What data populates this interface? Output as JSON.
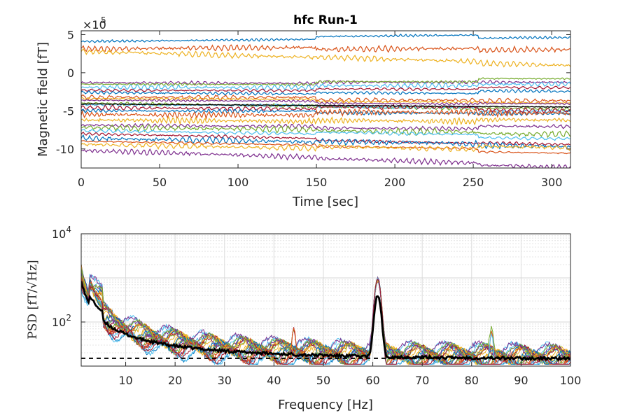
{
  "chart_data": [
    {
      "type": "line",
      "title": "hfc Run-1",
      "xlabel": "Time [sec]",
      "ylabel": "Magnetic field [fT]",
      "y_exponent_label": "×10",
      "y_exponent_power": "5",
      "xlim": [
        0,
        312
      ],
      "ylim": [
        -12.5,
        5.5
      ],
      "xticks": [
        0,
        50,
        100,
        150,
        200,
        250,
        300
      ],
      "yticks": [
        5,
        0,
        -5,
        -10
      ],
      "grid": false,
      "colors": [
        "#0072BD",
        "#D95319",
        "#EDB120",
        "#7E2F8E",
        "#77AC30",
        "#4DBEEE",
        "#A2142F"
      ],
      "series_baselines_start": [
        4.1,
        3.1,
        2.8,
        -1.3,
        -1.5,
        -1.9,
        -2.3,
        -2.6,
        -3.2,
        -3.4,
        -3.6,
        -4.0,
        -4.2,
        -4.6,
        -5.0,
        -5.5,
        -6.2,
        -6.9,
        -7.2,
        -7.6,
        -8.0,
        -8.6,
        -9.0,
        -9.4,
        -10.2
      ],
      "series_baselines_end": [
        4.7,
        3.6,
        1.1,
        -1.5,
        -1.6,
        -2.0,
        -2.4,
        -3.0,
        -3.3,
        -3.6,
        -3.9,
        -4.8,
        -4.4,
        -4.9,
        -5.1,
        -5.6,
        -6.6,
        -7.2,
        -7.7,
        -8.5,
        -9.3,
        -9.6,
        -10.0,
        -10.5,
        -12.1
      ],
      "highlight_series": "black",
      "events_x": [
        150,
        253
      ]
    },
    {
      "type": "line",
      "title": "",
      "xlabel": "Frequency [Hz]",
      "ylabel": "PSD [fT/√Hz]",
      "ylabel_prefix": "PSD",
      "ylabel_math": "[fT/√Hz]",
      "xlim": [
        1,
        100
      ],
      "ylim": [
        10,
        10000
      ],
      "yscale": "log",
      "xticks": [
        10,
        20,
        30,
        40,
        50,
        60,
        70,
        80,
        90,
        100
      ],
      "yticks": [
        {
          "value": 10000,
          "base": "10",
          "exp": "4"
        },
        {
          "value": 100,
          "base": "10",
          "exp": "2"
        }
      ],
      "grid": true,
      "mean_series_color": "#000000",
      "noise_floor": 15,
      "peaks": [
        {
          "freq": 4,
          "value": 700
        },
        {
          "freq": 44,
          "value": 70
        },
        {
          "freq": 61,
          "value": 1200
        },
        {
          "freq": 84,
          "value": 45
        }
      ]
    }
  ]
}
